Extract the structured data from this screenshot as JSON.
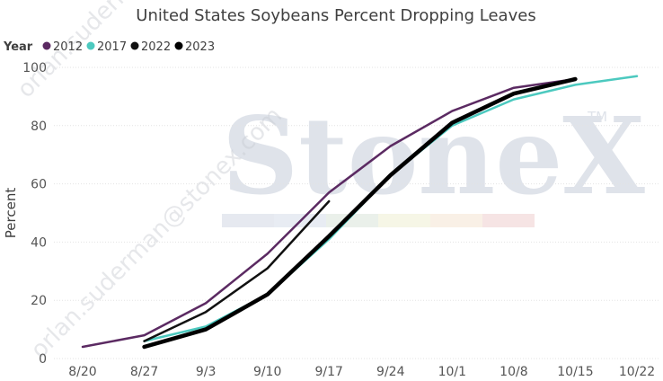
{
  "chart_data": {
    "type": "line",
    "title": "United States Soybeans Percent Dropping Leaves",
    "xlabel": "",
    "ylabel": "Percent",
    "legend": {
      "title": "Year",
      "placement": "top-left"
    },
    "categories": [
      "8/20",
      "8/27",
      "9/3",
      "9/10",
      "9/17",
      "9/24",
      "10/1",
      "10/8",
      "10/15",
      "10/22"
    ],
    "yticks": [
      0,
      20,
      40,
      60,
      80,
      100
    ],
    "ylim": [
      0,
      100
    ],
    "grid": true,
    "series": [
      {
        "name": "2012",
        "color": "#5b2a62",
        "stroke": "medium",
        "values": [
          4,
          8,
          19,
          36,
          57,
          73,
          85,
          93,
          96,
          null
        ]
      },
      {
        "name": "2017",
        "color": "#4cc9bf",
        "stroke": "medium",
        "values": [
          null,
          6,
          11,
          22,
          41,
          63,
          80,
          89,
          94,
          97
        ]
      },
      {
        "name": "2022",
        "color": "#111111",
        "stroke": "thin",
        "values": [
          null,
          6,
          16,
          31,
          54,
          null,
          null,
          null,
          null,
          null
        ]
      },
      {
        "name": "2023",
        "color": "#000000",
        "stroke": "thick",
        "values": [
          null,
          4,
          10,
          22,
          42,
          63,
          81,
          91,
          96,
          null
        ]
      }
    ]
  },
  "watermark": {
    "logo_text": "StoneX",
    "logo_mark": "TM",
    "diagonal_text": "orlan.suderman@stonex.com",
    "band_colors": [
      "#e6e9f0",
      "#e8ecf3",
      "#eaf0ea",
      "#f6f6e6",
      "#f9f0e6",
      "#f6e4e4"
    ]
  }
}
